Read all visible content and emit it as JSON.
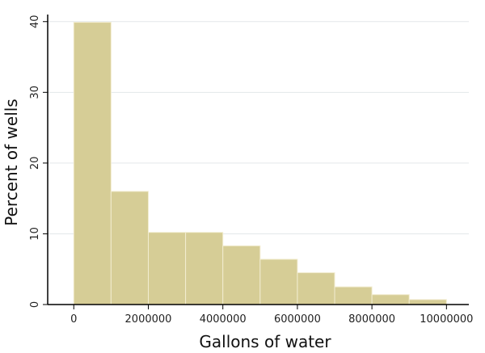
{
  "chart_data": {
    "type": "bar",
    "title": "",
    "xlabel": "Gallons of water",
    "ylabel": "Percent of wells",
    "bin_width": 1000000,
    "bins": [
      {
        "start": 0,
        "end": 1000000,
        "value": 39.9
      },
      {
        "start": 1000000,
        "end": 2000000,
        "value": 16.0
      },
      {
        "start": 2000000,
        "end": 3000000,
        "value": 10.2
      },
      {
        "start": 3000000,
        "end": 4000000,
        "value": 10.2
      },
      {
        "start": 4000000,
        "end": 5000000,
        "value": 8.3
      },
      {
        "start": 5000000,
        "end": 6000000,
        "value": 6.4
      },
      {
        "start": 6000000,
        "end": 7000000,
        "value": 4.5
      },
      {
        "start": 7000000,
        "end": 8000000,
        "value": 2.5
      },
      {
        "start": 8000000,
        "end": 9000000,
        "value": 1.4
      },
      {
        "start": 9000000,
        "end": 10000000,
        "value": 0.7
      }
    ],
    "xlim": [
      -700000,
      10600000
    ],
    "ylim": [
      0,
      41
    ],
    "xticks": [
      0,
      2000000,
      4000000,
      6000000,
      8000000,
      10000000
    ],
    "xtick_labels": [
      "0",
      "2000000",
      "4000000",
      "6000000",
      "8000000",
      "10000000"
    ],
    "yticks": [
      0,
      10,
      20,
      30,
      40
    ],
    "ytick_labels": [
      "0",
      "10",
      "20",
      "30",
      "40"
    ],
    "grid": true,
    "bar_color": "#d6cd96",
    "bar_edge_color": "#f2ecd0",
    "grid_color": "#e3e7ea"
  }
}
